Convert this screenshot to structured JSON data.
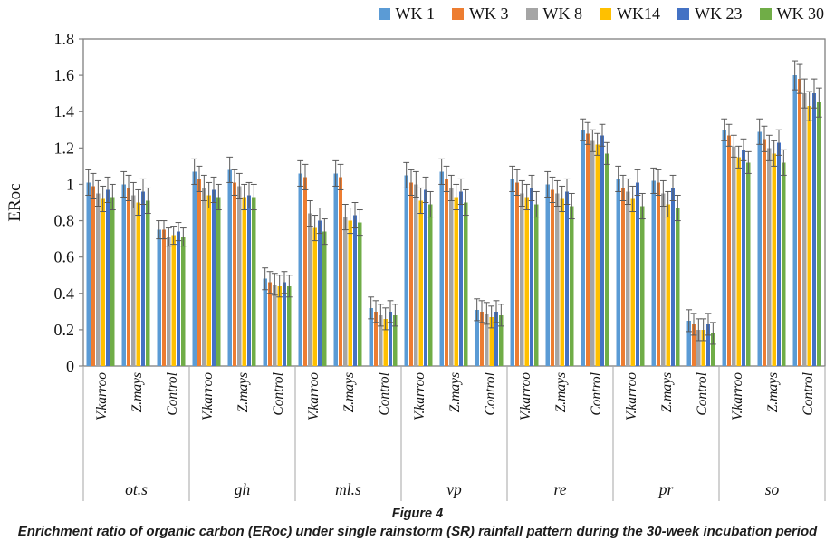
{
  "figure": {
    "caption_title": "Figure 4",
    "caption_text": "Enrichment ratio of organic carbon (ERoc) under single rainstorm (SR) rainfall pattern during the 30-week incubation period"
  },
  "colors": {
    "error_bar": "#595959",
    "axis_frame": "#808080",
    "category_divider": "#A6A6A6",
    "text": "#111111"
  },
  "chart_data": {
    "type": "bar",
    "title": "",
    "xlabel": "",
    "ylabel": "ERoc",
    "ylim": [
      0,
      1.8
    ],
    "ytick_step": 0.2,
    "ytick_labels": [
      "0",
      "0.2",
      "0.4",
      "0.6",
      "0.8",
      "1",
      "1.2",
      "1.4",
      "1.6",
      "1.8"
    ],
    "grid": false,
    "legend_position": "top-right",
    "error_bars": "symmetric, capped, per-bar",
    "series": [
      {
        "name": "WK 1",
        "color": "#5B9BD5"
      },
      {
        "name": "WK 3",
        "color": "#ED7D31"
      },
      {
        "name": "WK 8",
        "color": "#A5A5A5"
      },
      {
        "name": "WK14",
        "color": "#FFC000"
      },
      {
        "name": "WK 23",
        "color": "#4472C4"
      },
      {
        "name": "WK 30",
        "color": "#70AD47"
      }
    ],
    "groups": [
      {
        "label": "ot.s",
        "clusters": [
          {
            "label": "V.karroo",
            "values": [
              1.01,
              0.99,
              0.95,
              0.92,
              0.97,
              0.93
            ],
            "err": 0.07
          },
          {
            "label": "Z.mays",
            "values": [
              1.0,
              0.98,
              0.94,
              0.9,
              0.96,
              0.91
            ],
            "err": 0.07
          },
          {
            "label": "Control",
            "values": [
              0.75,
              0.75,
              0.71,
              0.72,
              0.74,
              0.71
            ],
            "err": 0.05
          }
        ]
      },
      {
        "label": "gh",
        "clusters": [
          {
            "label": "V.karroo",
            "values": [
              1.07,
              1.03,
              0.98,
              0.94,
              0.97,
              0.93
            ],
            "err": 0.07
          },
          {
            "label": "Z.mays",
            "values": [
              1.08,
              1.01,
              0.99,
              0.93,
              0.94,
              0.93
            ],
            "err": 0.07
          },
          {
            "label": "Control",
            "values": [
              0.48,
              0.46,
              0.45,
              0.44,
              0.46,
              0.44
            ],
            "err": 0.06
          }
        ]
      },
      {
        "label": "ml.s",
        "clusters": [
          {
            "label": "V.karroo",
            "values": [
              1.06,
              1.04,
              0.84,
              0.76,
              0.8,
              0.74
            ],
            "err": 0.07
          },
          {
            "label": "Z.mays",
            "values": [
              1.06,
              1.04,
              0.82,
              0.8,
              0.83,
              0.79
            ],
            "err": 0.07
          },
          {
            "label": "Control",
            "values": [
              0.32,
              0.3,
              0.28,
              0.26,
              0.3,
              0.28
            ],
            "err": 0.06
          }
        ]
      },
      {
        "label": "vp",
        "clusters": [
          {
            "label": "V.karroo",
            "values": [
              1.05,
              1.01,
              1.0,
              0.91,
              0.97,
              0.89
            ],
            "err": 0.07
          },
          {
            "label": "Z.mays",
            "values": [
              1.07,
              1.03,
              0.98,
              0.93,
              0.96,
              0.9
            ],
            "err": 0.07
          },
          {
            "label": "Control",
            "values": [
              0.31,
              0.3,
              0.29,
              0.27,
              0.3,
              0.28
            ],
            "err": 0.06
          }
        ]
      },
      {
        "label": "re",
        "clusters": [
          {
            "label": "V.karroo",
            "values": [
              1.03,
              1.01,
              0.95,
              0.93,
              0.98,
              0.89
            ],
            "err": 0.07
          },
          {
            "label": "Z.mays",
            "values": [
              1.0,
              0.97,
              0.95,
              0.92,
              0.96,
              0.88
            ],
            "err": 0.07
          },
          {
            "label": "Control",
            "values": [
              1.3,
              1.28,
              1.24,
              1.22,
              1.27,
              1.17
            ],
            "err": 0.06
          }
        ]
      },
      {
        "label": "pr",
        "clusters": [
          {
            "label": "V.karroo",
            "values": [
              1.03,
              0.98,
              0.96,
              0.92,
              1.01,
              0.88
            ],
            "err": 0.07
          },
          {
            "label": "Z.mays",
            "values": [
              1.02,
              1.01,
              0.95,
              0.89,
              0.98,
              0.87
            ],
            "err": 0.07
          },
          {
            "label": "Control",
            "values": [
              0.25,
              0.23,
              0.2,
              0.2,
              0.23,
              0.18
            ],
            "err": 0.06
          }
        ]
      },
      {
        "label": "so",
        "clusters": [
          {
            "label": "V.karroo",
            "values": [
              1.3,
              1.27,
              1.21,
              1.15,
              1.19,
              1.12
            ],
            "err": 0.06
          },
          {
            "label": "Z.mays",
            "values": [
              1.29,
              1.25,
              1.2,
              1.17,
              1.23,
              1.12
            ],
            "err": 0.07
          },
          {
            "label": "Control",
            "values": [
              1.6,
              1.58,
              1.5,
              1.43,
              1.5,
              1.45
            ],
            "err": 0.08
          }
        ]
      }
    ]
  }
}
